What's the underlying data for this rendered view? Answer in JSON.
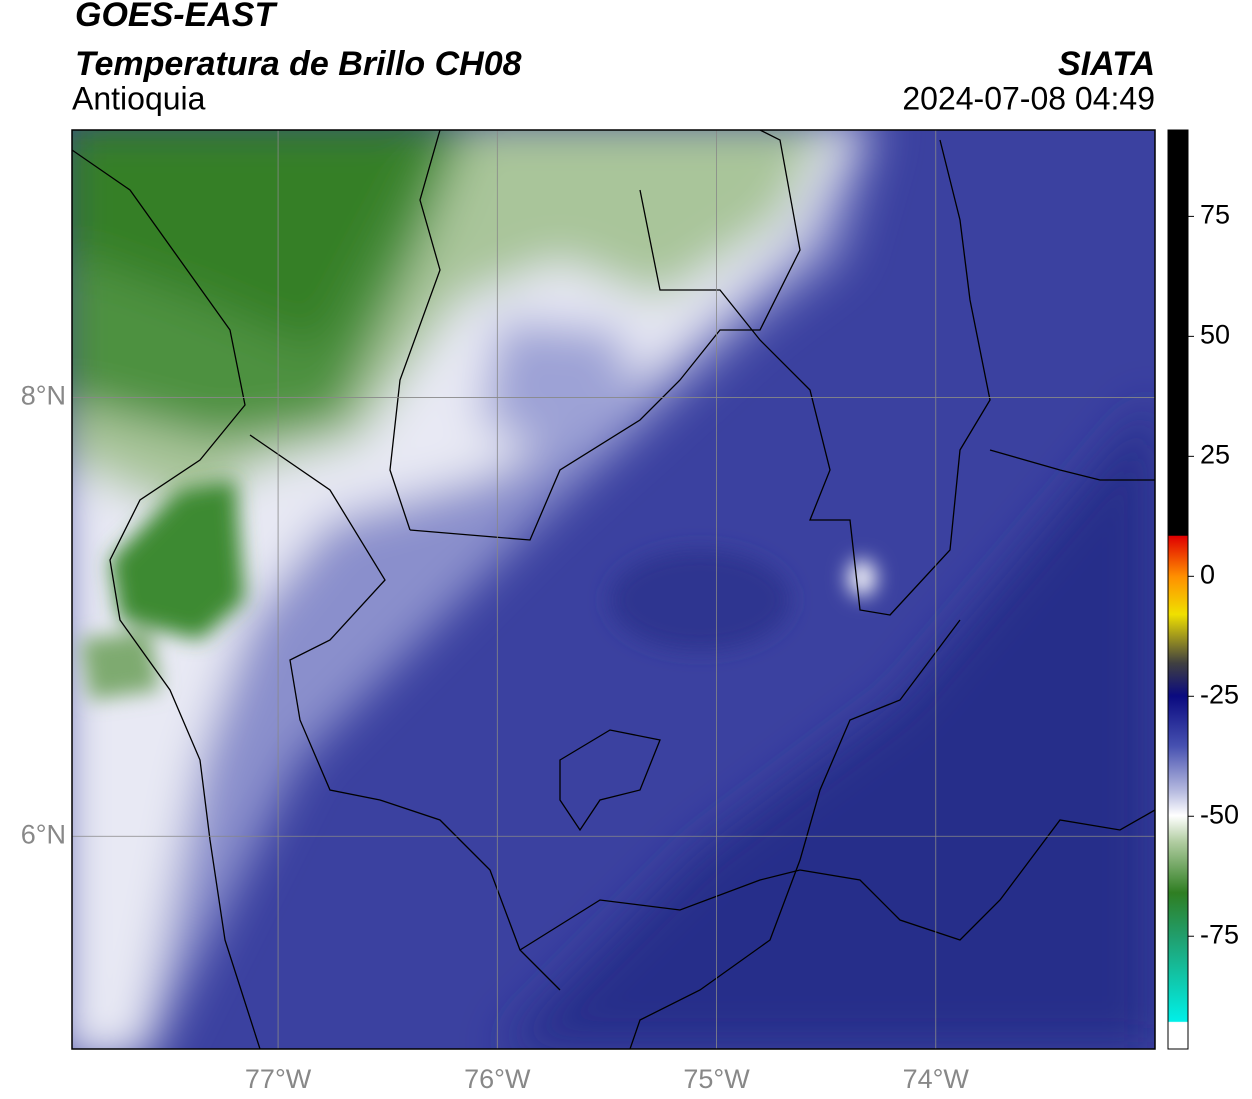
{
  "header": {
    "title": "GOES-EAST",
    "product": "Temperatura de Brillo CH08",
    "region": "Antioquia",
    "source": "SIATA",
    "datetime": "2024-07-08 04:49"
  },
  "map": {
    "xlim": [
      -77.94,
      -73.0
    ],
    "ylim": [
      5.03,
      9.22
    ],
    "xticks": [
      {
        "value": -77,
        "label": "77°W"
      },
      {
        "value": -76,
        "label": "76°W"
      },
      {
        "value": -75,
        "label": "75°W"
      },
      {
        "value": -74,
        "label": "74°W"
      }
    ],
    "yticks": [
      {
        "value": 8,
        "label": "8°N"
      },
      {
        "value": 6,
        "label": "6°N"
      }
    ],
    "grid": true
  },
  "colorbar": {
    "lim": [
      -98.5,
      93
    ],
    "ticks": [
      75,
      50,
      25,
      0,
      -25,
      -50,
      -75
    ]
  }
}
